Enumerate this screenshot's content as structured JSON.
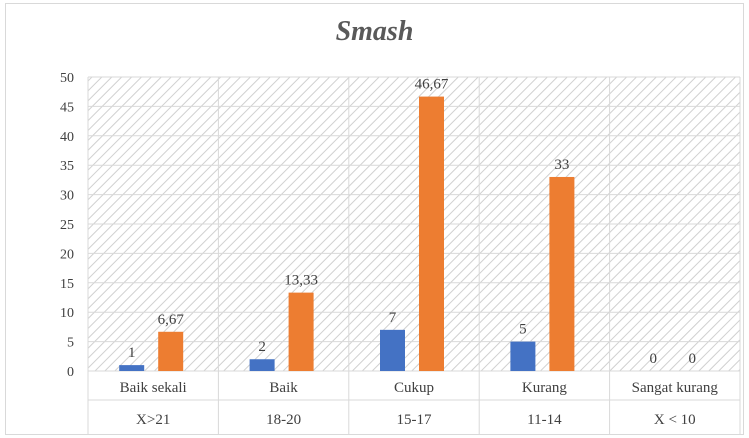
{
  "chart_data": {
    "type": "bar",
    "title": "Smash",
    "categories": [
      {
        "label": "Baik sekali",
        "range": "X>21"
      },
      {
        "label": "Baik",
        "range": "18-20"
      },
      {
        "label": "Cukup",
        "range": "15-17"
      },
      {
        "label": "Kurang",
        "range": "11-14"
      },
      {
        "label": "Sangat kurang",
        "range": "X < 10"
      }
    ],
    "series": [
      {
        "values": [
          1,
          2,
          7,
          5,
          0
        ],
        "data_labels": [
          "1",
          "2",
          "7",
          "5",
          "0"
        ],
        "color": "#4472c4"
      },
      {
        "values": [
          6.67,
          13.33,
          46.67,
          33,
          0
        ],
        "data_labels": [
          "6,67",
          "13,33",
          "46,67",
          "33",
          "0"
        ],
        "color": "#ed7d31"
      }
    ],
    "ylim": [
      0,
      50
    ],
    "yticks": [
      "0",
      "5",
      "10",
      "15",
      "20",
      "25",
      "30",
      "35",
      "40",
      "45",
      "50"
    ],
    "grid": true,
    "background_pattern": "diagonal-hatch",
    "xlabel": "",
    "ylabel": ""
  }
}
